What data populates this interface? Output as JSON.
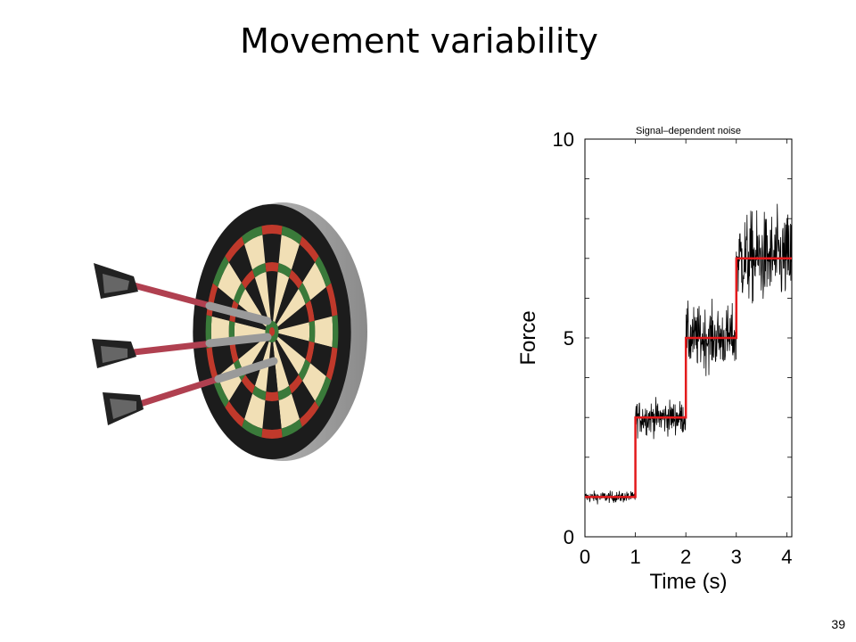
{
  "slide": {
    "title": "Movement variability",
    "page_number": "39"
  },
  "illustration": {
    "icon": "dartboard-with-darts-icon"
  },
  "chart_data": {
    "type": "line",
    "title": "Signal–dependent noise",
    "xlabel": "Time (s)",
    "ylabel": "Force",
    "xlim": [
      0,
      4.1
    ],
    "ylim": [
      0,
      10
    ],
    "x_ticks": [
      0,
      1,
      2,
      3,
      4
    ],
    "x_tick_labels": [
      "0",
      "1",
      "2",
      "3",
      "4"
    ],
    "y_ticks": [
      0,
      5,
      10
    ],
    "y_tick_labels": [
      "0",
      "5",
      "10"
    ],
    "grid": false,
    "legend": "none",
    "series": [
      {
        "style": "step",
        "color": "#e31a1c",
        "x": [
          0,
          1,
          1,
          2,
          2,
          3,
          3,
          4.1
        ],
        "y": [
          1,
          1,
          3,
          3,
          5,
          5,
          7,
          7
        ]
      },
      {
        "style": "noisy-trace",
        "color": "#000000",
        "segments": [
          {
            "x_start": 0,
            "x_end": 1,
            "mean": 1,
            "spread": 0.1
          },
          {
            "x_start": 1,
            "x_end": 2,
            "mean": 3,
            "spread": 0.3
          },
          {
            "x_start": 2,
            "x_end": 3,
            "mean": 5,
            "spread": 0.55
          },
          {
            "x_start": 3,
            "x_end": 4.1,
            "mean": 7,
            "spread": 0.8
          }
        ]
      }
    ]
  }
}
